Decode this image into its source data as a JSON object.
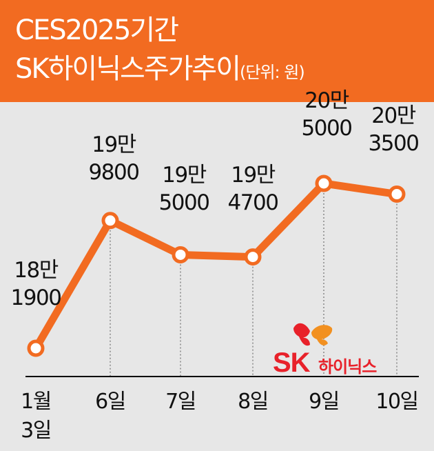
{
  "header": {
    "title_line1": "CES2025기간",
    "title_line2": "SK하이닉스주가추이",
    "unit": "(단위: 원)"
  },
  "brand": {
    "sk": "SK",
    "name": "하이닉스"
  },
  "colors": {
    "header_bg": "#f26b21",
    "line": "#f26b21",
    "marker_fill": "#ffffff",
    "plot_bg": "#e7e7e7",
    "brand_red": "#e8212a",
    "brand_orange": "#f29020"
  },
  "chart_data": {
    "type": "line",
    "title": "CES2025기간 SK하이닉스주가추이",
    "unit": "(단위: 원)",
    "categories": [
      "1월 3일",
      "6일",
      "7일",
      "8일",
      "9일",
      "10일"
    ],
    "category_lines": [
      [
        "1월",
        "3일"
      ],
      [
        "6일"
      ],
      [
        "7일"
      ],
      [
        "8일"
      ],
      [
        "9일"
      ],
      [
        "10일"
      ]
    ],
    "values": [
      181900,
      199800,
      195000,
      194700,
      205000,
      203500
    ],
    "value_labels": [
      [
        "18만",
        "1900"
      ],
      [
        "19만",
        "9800"
      ],
      [
        "19만",
        "5000"
      ],
      [
        "19만",
        "4700"
      ],
      [
        "20만",
        "5000"
      ],
      [
        "20만",
        "3500"
      ]
    ],
    "grid": "vertical dotted",
    "legend": "none"
  }
}
